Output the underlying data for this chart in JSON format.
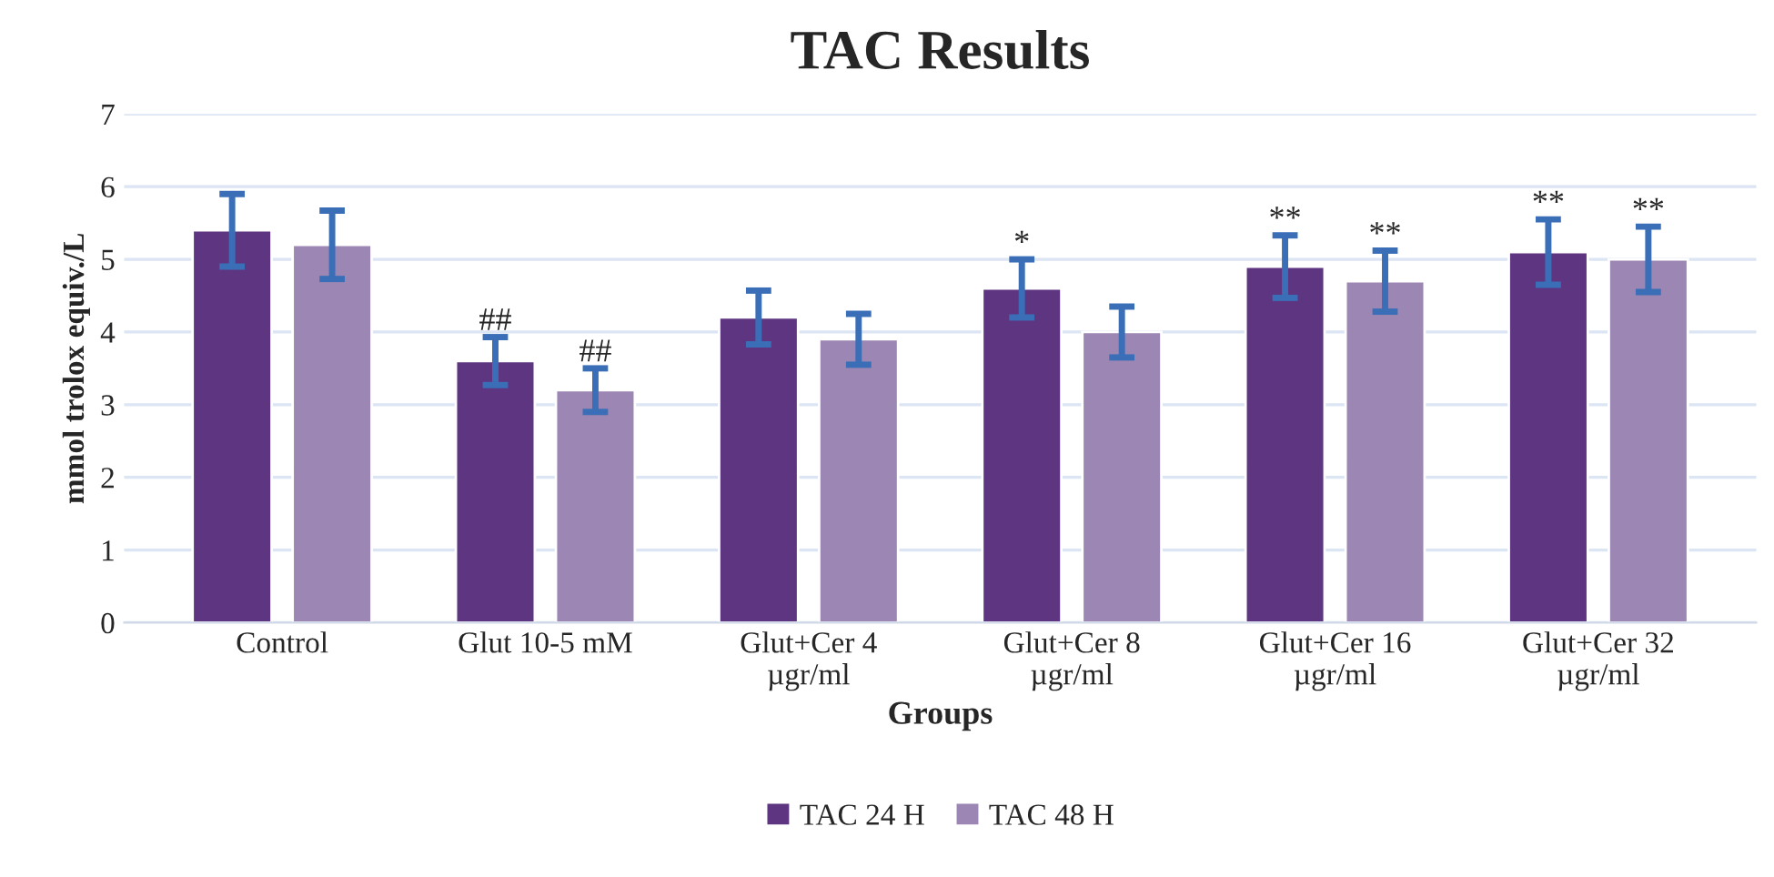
{
  "chart_data": {
    "type": "bar",
    "title": "TAC Results",
    "xlabel": "Groups",
    "ylabel": "mmol trolox equiv./L",
    "categories": [
      "Control",
      "Glut 10-5 mM",
      "Glut+Cer 4\nµgr/ml",
      "Glut+Cer 8\nµgr/ml",
      "Glut+Cer 16\nµgr/ml",
      "Glut+Cer 32\nµgr/ml"
    ],
    "series": [
      {
        "name": "TAC 24 H",
        "color": "#5e3580",
        "values": [
          5.4,
          3.6,
          4.2,
          4.6,
          4.9,
          5.1
        ],
        "errors": [
          0.5,
          0.33,
          0.37,
          0.4,
          0.43,
          0.45
        ],
        "value_labels": [
          null,
          "##",
          null,
          "*",
          "**",
          "**"
        ]
      },
      {
        "name": "TAC 48 H",
        "color": "#9c86b3",
        "values": [
          5.2,
          3.2,
          3.9,
          4.0,
          4.7,
          5.0
        ],
        "errors": [
          0.47,
          0.3,
          0.35,
          0.35,
          0.42,
          0.45
        ],
        "value_labels": [
          null,
          "##",
          null,
          null,
          "**",
          "**"
        ]
      }
    ],
    "ylim": [
      0,
      7
    ],
    "yticks": [
      0,
      1,
      2,
      3,
      4,
      5,
      6,
      7
    ],
    "grid": "y",
    "legend": "bottom"
  }
}
